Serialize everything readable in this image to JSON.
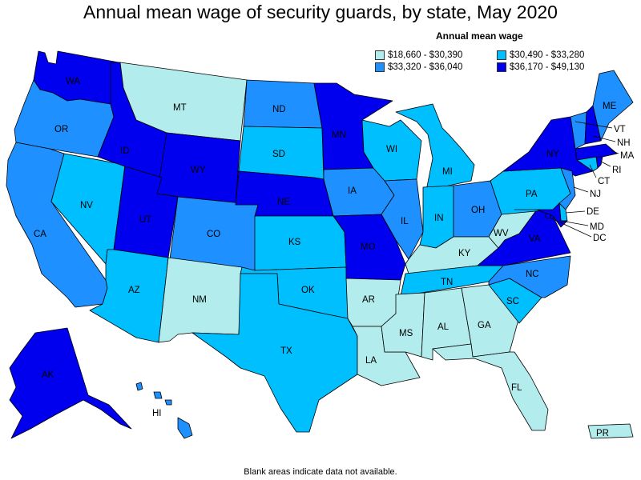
{
  "title": "Annual mean wage of security guards, by state, May 2020",
  "legend": {
    "title": "Annual mean wage",
    "bins": [
      {
        "label": "$18,660 - $30,390",
        "color": "#b3ecec"
      },
      {
        "label": "$30,490 - $33,280",
        "color": "#00bfff"
      },
      {
        "label": "$33,320 - $36,040",
        "color": "#1e90ff"
      },
      {
        "label": "$36,170 - $49,130",
        "color": "#0000ee"
      }
    ]
  },
  "footnote": "Blank areas indicate data not available.",
  "states": {
    "WA": {
      "label": "WA",
      "bin": 3
    },
    "OR": {
      "label": "OR",
      "bin": 2
    },
    "CA": {
      "label": "CA",
      "bin": 2
    },
    "NV": {
      "label": "NV",
      "bin": 1
    },
    "ID": {
      "label": "ID",
      "bin": 3
    },
    "MT": {
      "label": "MT",
      "bin": 0
    },
    "WY": {
      "label": "WY",
      "bin": 3
    },
    "UT": {
      "label": "UT",
      "bin": 3
    },
    "AZ": {
      "label": "AZ",
      "bin": 1
    },
    "CO": {
      "label": "CO",
      "bin": 2
    },
    "NM": {
      "label": "NM",
      "bin": 0
    },
    "ND": {
      "label": "ND",
      "bin": 2
    },
    "SD": {
      "label": "SD",
      "bin": 1
    },
    "NE": {
      "label": "NE",
      "bin": 3
    },
    "KS": {
      "label": "KS",
      "bin": 1
    },
    "OK": {
      "label": "OK",
      "bin": 1
    },
    "TX": {
      "label": "TX",
      "bin": 1
    },
    "MN": {
      "label": "MN",
      "bin": 3
    },
    "IA": {
      "label": "IA",
      "bin": 2
    },
    "MO": {
      "label": "MO",
      "bin": 3
    },
    "AR": {
      "label": "AR",
      "bin": 0
    },
    "LA": {
      "label": "LA",
      "bin": 0
    },
    "WI": {
      "label": "WI",
      "bin": 1
    },
    "IL": {
      "label": "IL",
      "bin": 2
    },
    "MI": {
      "label": "MI",
      "bin": 1
    },
    "IN": {
      "label": "IN",
      "bin": 1
    },
    "OH": {
      "label": "OH",
      "bin": 2
    },
    "KY": {
      "label": "KY",
      "bin": 0
    },
    "TN": {
      "label": "TN",
      "bin": 1
    },
    "MS": {
      "label": "MS",
      "bin": 0
    },
    "AL": {
      "label": "AL",
      "bin": 0
    },
    "GA": {
      "label": "GA",
      "bin": 0
    },
    "FL": {
      "label": "FL",
      "bin": 0
    },
    "SC": {
      "label": "SC",
      "bin": 1
    },
    "NC": {
      "label": "NC",
      "bin": 2
    },
    "VA": {
      "label": "VA",
      "bin": 3
    },
    "WV": {
      "label": "WV",
      "bin": 0
    },
    "PA": {
      "label": "PA",
      "bin": 1
    },
    "NY": {
      "label": "NY",
      "bin": 3
    },
    "ME": {
      "label": "ME",
      "bin": 2
    },
    "VT": {
      "label": "VT",
      "bin": 2
    },
    "NH": {
      "label": "NH",
      "bin": 3
    },
    "MA": {
      "label": "MA",
      "bin": 3
    },
    "RI": {
      "label": "RI",
      "bin": 3
    },
    "CT": {
      "label": "CT",
      "bin": 1
    },
    "NJ": {
      "label": "NJ",
      "bin": 2
    },
    "DE": {
      "label": "DE",
      "bin": 1
    },
    "MD": {
      "label": "MD",
      "bin": 3
    },
    "DC": {
      "label": "DC",
      "bin": 3
    },
    "AK": {
      "label": "AK",
      "bin": 3
    },
    "HI": {
      "label": "HI",
      "bin": 2
    },
    "PR": {
      "label": "PR",
      "bin": 0
    }
  }
}
